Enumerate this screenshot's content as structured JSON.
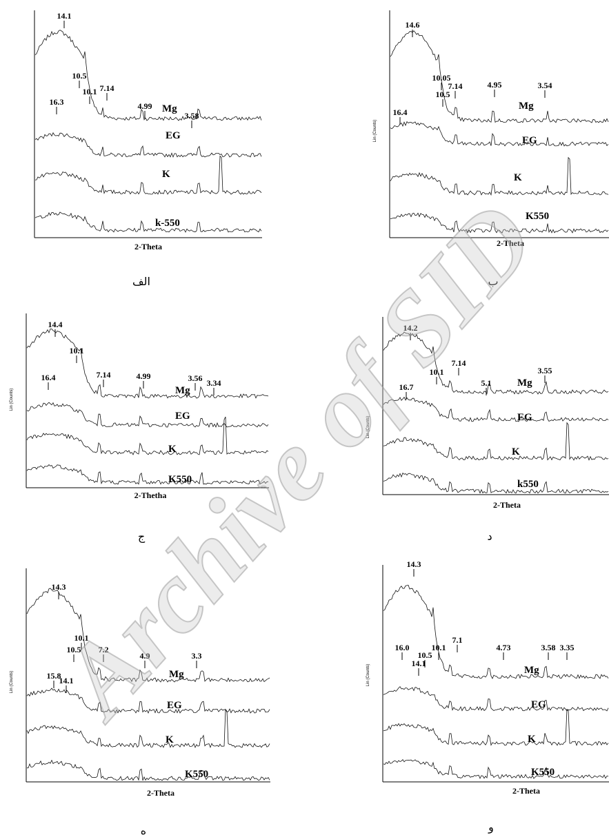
{
  "watermark": "Archive of SID",
  "panels": [
    {
      "caption": "الف",
      "x_label": "2-Theta",
      "traces": [
        "Mg",
        "EG",
        "K",
        "k-550"
      ],
      "peaks": [
        "14.1",
        "10.5",
        "10.1",
        "7.14",
        "4.99",
        "3.58",
        "16.3"
      ]
    },
    {
      "caption": "ب",
      "x_label": "2-Theta",
      "y_label": "Lin (Counts)",
      "traces": [
        "Mg",
        "EG",
        "K",
        "K550"
      ],
      "peaks": [
        "14.6",
        "10.05",
        "10.5",
        "7.14",
        "4.95",
        "3.54",
        "16.4"
      ]
    },
    {
      "caption": "ج",
      "x_label": "2-Thetha",
      "y_label": "Lin (Counts)",
      "traces": [
        "Mg",
        "EG",
        "K",
        "K550"
      ],
      "peaks": [
        "14.4",
        "10.1",
        "7.14",
        "4.99",
        "3.56",
        "3.34",
        "16.4"
      ]
    },
    {
      "caption": "د",
      "x_label": "2-Theta",
      "y_label": "Lin (Counts)",
      "traces": [
        "Mg",
        "EG",
        "K",
        "k550"
      ],
      "peaks": [
        "14.2",
        "10.1",
        "7.14",
        "5.1",
        "3.55",
        "16.7"
      ]
    },
    {
      "caption": "ه",
      "x_label": "2-Theta",
      "y_label": "Lin (Counts)",
      "traces": [
        "Mg",
        "EG",
        "K",
        "K550"
      ],
      "peaks": [
        "14.3",
        "10.1",
        "10.5",
        "7.2",
        "4.9",
        "3.3",
        "15.8",
        "14.1"
      ]
    },
    {
      "caption": "و",
      "x_label": "2-Theta",
      "y_label": "Lin (Counts)",
      "traces": [
        "Mg",
        "EG",
        "K",
        "K550"
      ],
      "peaks": [
        "14.3",
        "16.0",
        "10.5",
        "10.1",
        "14.1",
        "7.1",
        "4.73",
        "3.58",
        "3.35"
      ]
    }
  ]
}
